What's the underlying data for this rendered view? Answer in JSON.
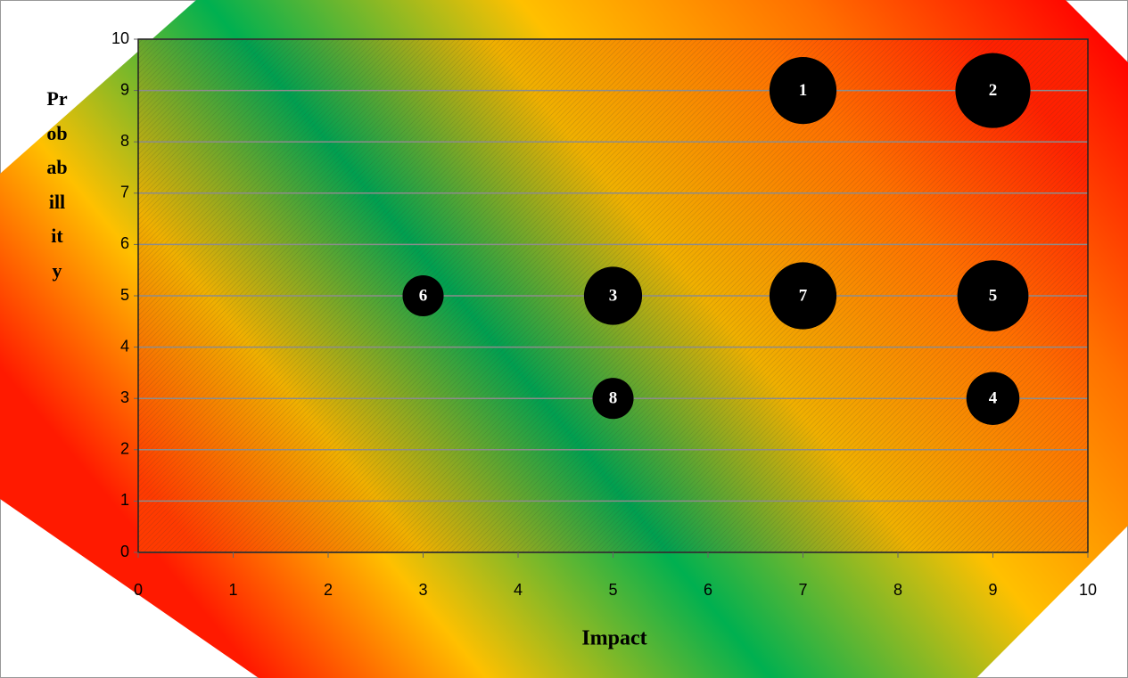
{
  "chart_data": {
    "type": "bubble",
    "x_label": "Impact",
    "y_label": "Probabillity",
    "x": [
      7,
      9,
      5,
      9,
      9,
      3,
      7,
      5
    ],
    "values": [
      9,
      9,
      5,
      3,
      5,
      5,
      5,
      3
    ],
    "sizes": [
      8,
      10,
      6,
      5,
      9,
      3,
      8,
      3
    ],
    "labels": [
      "1",
      "2",
      "3",
      "4",
      "5",
      "6",
      "7",
      "8"
    ],
    "color": "#000000",
    "xlim": [
      0,
      10
    ],
    "ylim": [
      0,
      10
    ],
    "xticks": [
      0,
      1,
      2,
      3,
      4,
      5,
      6,
      7,
      8,
      9,
      10
    ],
    "yticks": [
      0,
      1,
      2,
      3,
      4,
      5,
      6,
      7,
      8,
      9,
      10
    ],
    "grid": true
  }
}
